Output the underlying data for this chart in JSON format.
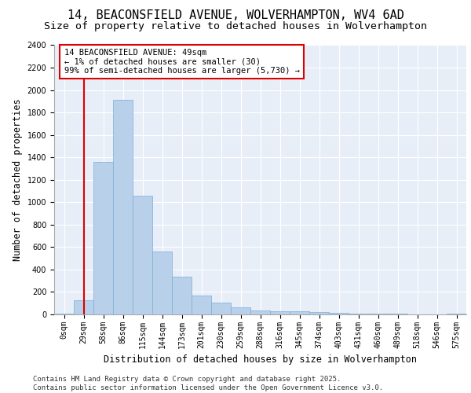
{
  "title1": "14, BEACONSFIELD AVENUE, WOLVERHAMPTON, WV4 6AD",
  "title2": "Size of property relative to detached houses in Wolverhampton",
  "xlabel": "Distribution of detached houses by size in Wolverhampton",
  "ylabel": "Number of detached properties",
  "footnote": "Contains HM Land Registry data © Crown copyright and database right 2025.\nContains public sector information licensed under the Open Government Licence v3.0.",
  "categories": [
    "0sqm",
    "29sqm",
    "58sqm",
    "86sqm",
    "115sqm",
    "144sqm",
    "173sqm",
    "201sqm",
    "230sqm",
    "259sqm",
    "288sqm",
    "316sqm",
    "345sqm",
    "374sqm",
    "403sqm",
    "431sqm",
    "460sqm",
    "489sqm",
    "518sqm",
    "546sqm",
    "575sqm"
  ],
  "values": [
    10,
    125,
    1360,
    1910,
    1055,
    560,
    335,
    165,
    105,
    60,
    35,
    30,
    25,
    20,
    15,
    5,
    5,
    5,
    2,
    2,
    10
  ],
  "bar_color": "#b8d0ea",
  "bar_edge_color": "#7aaed6",
  "background_color": "#e8eef8",
  "grid_color": "#ffffff",
  "ylim": [
    0,
    2400
  ],
  "yticks": [
    0,
    200,
    400,
    600,
    800,
    1000,
    1200,
    1400,
    1600,
    1800,
    2000,
    2200,
    2400
  ],
  "annotation_box_text": "14 BEACONSFIELD AVENUE: 49sqm\n← 1% of detached houses are smaller (30)\n99% of semi-detached houses are larger (5,730) →",
  "annotation_box_color": "#dd0000",
  "red_line_x": 1,
  "title1_fontsize": 11,
  "title2_fontsize": 9.5,
  "axis_fontsize": 8.5,
  "tick_fontsize": 7,
  "footnote_fontsize": 6.5,
  "annotation_fontsize": 7.5
}
